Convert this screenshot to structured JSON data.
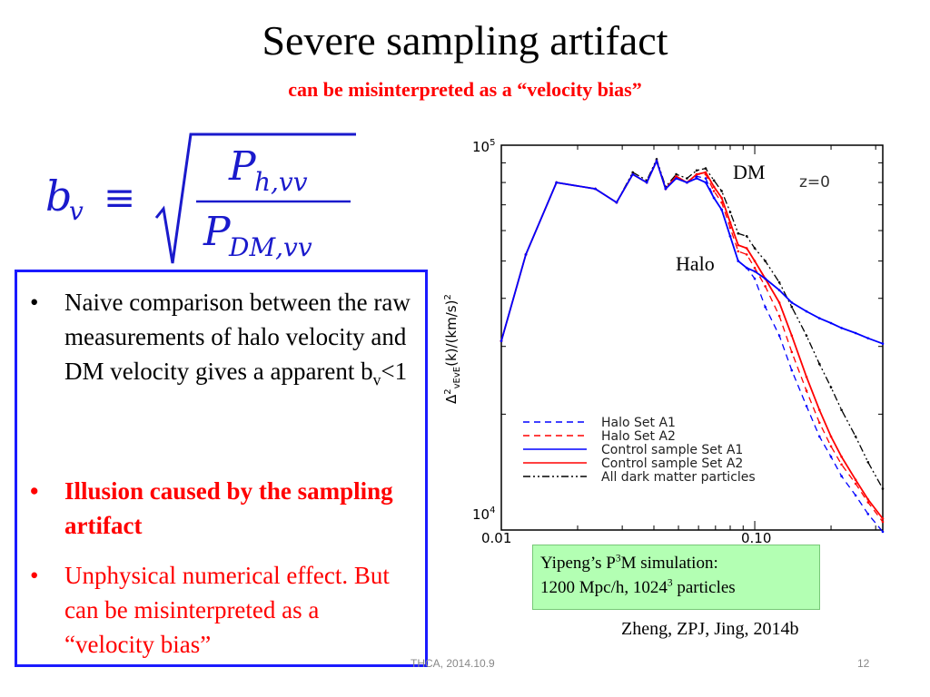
{
  "slide": {
    "title": "Severe sampling artifact",
    "subtitle": "can be misinterpreted as a “velocity bias”",
    "formula": {
      "lhs_base": "b",
      "lhs_sub": "v",
      "equiv": "≡",
      "num_base": "P",
      "num_sub": "h,vv",
      "den_base": "P",
      "den_sub": "DM,vv"
    },
    "bullets": [
      {
        "text": "Naive comparison between the raw measurements of halo velocity and DM velocity gives a apparent b",
        "sub": "v",
        "tail": "<1"
      },
      {
        "text": "Illusion  caused by the sampling artifact"
      },
      {
        "text": "Unphysical numerical effect. But can be misinterpreted as a “velocity bias”"
      }
    ],
    "bullet_symbol": "•",
    "sim_box": {
      "line1_pre": "Yipeng’s P",
      "line1_sup": "3",
      "line1_post": "M simulation:",
      "line2_pre": "1200 Mpc/h, 1024",
      "line2_sup": "3",
      "line2_post": " particles"
    },
    "citation": "Zheng, ZPJ, Jing, 2014b",
    "footer_center": "THCA, 2014.10.9",
    "footer_page": "12"
  },
  "colors": {
    "red": "#ff0000",
    "blue": "#0000ff",
    "black": "#000000",
    "box_border": "#1a1aff",
    "sim_box_bg": "#b3ffb3"
  },
  "chart_data": {
    "type": "line",
    "xscale": "log",
    "yscale": "log",
    "xlim": [
      0.01,
      0.32
    ],
    "ylim": [
      10000,
      100000
    ],
    "xticks": [
      {
        "value": 0.01,
        "label": "0.01"
      },
      {
        "value": 0.1,
        "label": "0.10"
      }
    ],
    "yticks": [
      {
        "value": 10000,
        "base": "10",
        "exp": "4"
      },
      {
        "value": 100000,
        "base": "10",
        "exp": "5"
      }
    ],
    "ylabel": {
      "pre": "Δ",
      "pre_sup": "2",
      "sub": "vEvE",
      "post": "(k)/(km/s)",
      "post_sup": "2"
    },
    "annotations": {
      "dm": "DM",
      "halo": "Halo",
      "redshift": "z=0"
    },
    "legend_position": "bottom-left",
    "series": [
      {
        "name": "Halo Set A1",
        "color": "#0000ff",
        "dash": "dashed",
        "x": [
          0.01,
          0.0125,
          0.0165,
          0.0235,
          0.0285,
          0.033,
          0.0375,
          0.041,
          0.0445,
          0.049,
          0.054,
          0.059,
          0.064,
          0.069,
          0.074,
          0.08,
          0.086,
          0.093,
          0.1,
          0.11,
          0.125,
          0.14,
          0.16,
          0.18,
          0.2,
          0.22,
          0.25,
          0.28,
          0.32
        ],
        "y": [
          31000,
          52000,
          80000,
          77000,
          71000,
          84000,
          80000,
          91000,
          77000,
          82000,
          80000,
          83000,
          82000,
          73000,
          68000,
          58000,
          50000,
          48000,
          45000,
          38000,
          32000,
          26000,
          21000,
          17500,
          15500,
          13800,
          12300,
          11000,
          9900
        ]
      },
      {
        "name": "Halo Set A2",
        "color": "#ff0000",
        "dash": "dashed",
        "x": [
          0.01,
          0.0125,
          0.0165,
          0.0235,
          0.0285,
          0.033,
          0.0375,
          0.041,
          0.0445,
          0.049,
          0.054,
          0.059,
          0.064,
          0.069,
          0.074,
          0.08,
          0.086,
          0.093,
          0.1,
          0.11,
          0.125,
          0.14,
          0.16,
          0.18,
          0.2,
          0.22,
          0.25,
          0.28,
          0.32
        ],
        "y": [
          31000,
          52000,
          80000,
          77000,
          71000,
          84000,
          80000,
          91000,
          77000,
          82000,
          80000,
          84000,
          84000,
          76000,
          71000,
          61000,
          53000,
          52000,
          48000,
          43000,
          36000,
          29000,
          23000,
          19000,
          16500,
          14800,
          13200,
          11800,
          10500
        ]
      },
      {
        "name": "Control sample Set A1",
        "color": "#0000ff",
        "dash": "solid",
        "x": [
          0.01,
          0.0125,
          0.0165,
          0.0235,
          0.0285,
          0.033,
          0.0375,
          0.041,
          0.0445,
          0.049,
          0.054,
          0.059,
          0.064,
          0.069,
          0.074,
          0.08,
          0.086,
          0.093,
          0.1,
          0.11,
          0.125,
          0.14,
          0.16,
          0.18,
          0.2,
          0.22,
          0.25,
          0.28,
          0.32
        ],
        "y": [
          31000,
          52000,
          80000,
          77000,
          71000,
          84000,
          80000,
          91000,
          77000,
          82000,
          80000,
          82000,
          80000,
          73000,
          68000,
          58000,
          50000,
          48000,
          47000,
          45000,
          42000,
          39000,
          37000,
          35500,
          34500,
          33500,
          32500,
          31500,
          30500
        ]
      },
      {
        "name": "Control sample Set A2",
        "color": "#ff0000",
        "dash": "solid",
        "x": [
          0.01,
          0.0125,
          0.0165,
          0.0235,
          0.0285,
          0.033,
          0.0375,
          0.041,
          0.0445,
          0.049,
          0.054,
          0.059,
          0.064,
          0.069,
          0.074,
          0.08,
          0.086,
          0.093,
          0.1,
          0.11,
          0.125,
          0.14,
          0.16,
          0.18,
          0.2,
          0.22,
          0.25,
          0.28,
          0.32
        ],
        "y": [
          31000,
          52000,
          80000,
          77000,
          71000,
          84000,
          80000,
          91000,
          77000,
          83000,
          80000,
          84000,
          85000,
          78000,
          73000,
          63000,
          55000,
          54000,
          50000,
          45000,
          39000,
          32000,
          25000,
          20500,
          17500,
          15500,
          13500,
          12000,
          10700
        ]
      },
      {
        "name": "All dark matter particles",
        "color": "#000000",
        "dash": "dashdotdot",
        "x": [
          0.01,
          0.0125,
          0.0165,
          0.0235,
          0.0285,
          0.033,
          0.0375,
          0.041,
          0.0445,
          0.049,
          0.054,
          0.059,
          0.064,
          0.069,
          0.074,
          0.08,
          0.086,
          0.093,
          0.1,
          0.11,
          0.125,
          0.14,
          0.16,
          0.18,
          0.2,
          0.22,
          0.25,
          0.28,
          0.32
        ],
        "y": [
          31000,
          52000,
          80000,
          77000,
          71000,
          85000,
          81000,
          92000,
          78000,
          84000,
          82000,
          86000,
          87000,
          81000,
          76000,
          67000,
          59000,
          58000,
          54000,
          50000,
          44000,
          38000,
          32000,
          27000,
          23500,
          20500,
          17500,
          15000,
          12800
        ]
      }
    ]
  }
}
